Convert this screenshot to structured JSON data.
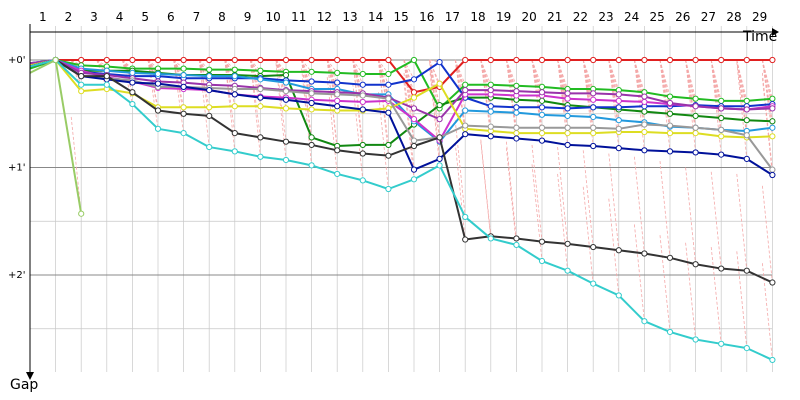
{
  "chart_data": {
    "type": "line",
    "x_axis_title": "Time",
    "y_axis_title": "Gap",
    "x_ticks": [
      "1",
      "2",
      "3",
      "4",
      "5",
      "6",
      "7",
      "8",
      "9",
      "10",
      "11",
      "12",
      "13",
      "14",
      "15",
      "16",
      "17",
      "18",
      "19",
      "20",
      "21",
      "22",
      "23",
      "24",
      "25",
      "26",
      "27",
      "28",
      "29"
    ],
    "y_ticks": [
      "+0'",
      "+1'",
      "+2'"
    ],
    "grid": true,
    "colors": {
      "lap_guides": "#f4a8a8",
      "grid": "#c8c8c8"
    },
    "series": [
      {
        "color": "#e02020",
        "values": [
          0.05,
          0,
          0,
          0,
          0,
          0,
          0,
          0,
          0,
          0,
          0,
          0,
          0,
          0,
          0,
          0.3,
          0.25,
          0,
          0,
          0,
          0,
          0,
          0,
          0,
          0,
          0,
          0,
          0,
          0,
          0
        ]
      },
      {
        "color": "#22bb22",
        "values": [
          0.08,
          0,
          0.05,
          0.06,
          0.08,
          0.08,
          0.08,
          0.09,
          0.09,
          0.1,
          0.11,
          0.11,
          0.12,
          0.13,
          0.13,
          0,
          0.45,
          0.23,
          0.23,
          0.24,
          0.25,
          0.27,
          0.27,
          0.28,
          0.3,
          0.34,
          0.36,
          0.38,
          0.38,
          0.36
        ]
      },
      {
        "color": "#118811",
        "values": [
          0.04,
          0,
          0.1,
          0.1,
          0.1,
          0.12,
          0.14,
          0.14,
          0.14,
          0.15,
          0.14,
          0.72,
          0.8,
          0.79,
          0.79,
          0.6,
          0.42,
          0.35,
          0.35,
          0.37,
          0.38,
          0.42,
          0.44,
          0.46,
          0.48,
          0.5,
          0.52,
          0.54,
          0.56,
          0.57
        ]
      },
      {
        "color": "#1133cc",
        "values": [
          0.03,
          0,
          0.11,
          0.13,
          0.15,
          0.15,
          0.17,
          0.17,
          0.17,
          0.17,
          0.19,
          0.2,
          0.21,
          0.23,
          0.23,
          0.18,
          0.02,
          0.35,
          0.43,
          0.44,
          0.44,
          0.45,
          0.44,
          0.44,
          0.43,
          0.43,
          0.42,
          0.43,
          0.43,
          0.41
        ]
      },
      {
        "color": "#2299dd",
        "values": [
          0.03,
          0,
          0.08,
          0.1,
          0.12,
          0.13,
          0.14,
          0.15,
          0.15,
          0.18,
          0.21,
          0.27,
          0.27,
          0.32,
          0.32,
          0.57,
          0.76,
          0.47,
          0.48,
          0.49,
          0.51,
          0.52,
          0.53,
          0.56,
          0.58,
          0.62,
          0.63,
          0.65,
          0.66,
          0.63
        ]
      },
      {
        "color": "#cc33cc",
        "values": [
          0.04,
          0,
          0.1,
          0.16,
          0.2,
          0.26,
          0.27,
          0.28,
          0.32,
          0.34,
          0.35,
          0.37,
          0.38,
          0.39,
          0.38,
          0.55,
          0.75,
          0.32,
          0.32,
          0.33,
          0.33,
          0.36,
          0.37,
          0.38,
          0.39,
          0.41,
          0.43,
          0.45,
          0.46,
          0.43
        ]
      },
      {
        "color": "#9933aa",
        "values": [
          0.03,
          0,
          0.12,
          0.14,
          0.17,
          0.2,
          0.21,
          0.23,
          0.24,
          0.26,
          0.28,
          0.29,
          0.3,
          0.31,
          0.35,
          0.45,
          0.55,
          0.28,
          0.28,
          0.29,
          0.3,
          0.31,
          0.31,
          0.32,
          0.34,
          0.4,
          0.43,
          0.45,
          0.46,
          0.45
        ]
      },
      {
        "color": "#dddd22",
        "values": [
          0.05,
          0,
          0.29,
          0.27,
          0.31,
          0.44,
          0.44,
          0.44,
          0.43,
          0.43,
          0.45,
          0.46,
          0.47,
          0.47,
          0.45,
          0.35,
          0.22,
          0.64,
          0.66,
          0.68,
          0.68,
          0.68,
          0.68,
          0.67,
          0.67,
          0.68,
          0.68,
          0.71,
          0.72,
          0.71
        ]
      },
      {
        "color": "#999999",
        "values": [
          0.06,
          0,
          0.15,
          0.17,
          0.19,
          0.25,
          0.25,
          0.26,
          0.27,
          0.27,
          0.29,
          0.31,
          0.32,
          0.33,
          0.36,
          0.75,
          0.72,
          0.61,
          0.62,
          0.63,
          0.63,
          0.63,
          0.63,
          0.64,
          0.6,
          0.61,
          0.63,
          0.65,
          0.7,
          1.02
        ]
      },
      {
        "color": "#00119a",
        "values": [
          0.06,
          0,
          0.15,
          0.18,
          0.21,
          0.22,
          0.25,
          0.28,
          0.32,
          0.35,
          0.37,
          0.4,
          0.43,
          0.46,
          0.49,
          1.02,
          0.92,
          0.69,
          0.71,
          0.73,
          0.75,
          0.79,
          0.8,
          0.82,
          0.84,
          0.85,
          0.86,
          0.88,
          0.92,
          1.07
        ]
      },
      {
        "color": "#333333",
        "values": [
          0.06,
          0,
          0.15,
          0.15,
          0.3,
          0.47,
          0.5,
          0.52,
          0.68,
          0.72,
          0.76,
          0.79,
          0.84,
          0.87,
          0.89,
          0.8,
          0.72,
          1.67,
          1.64,
          1.66,
          1.69,
          1.71,
          1.74,
          1.77,
          1.8,
          1.84,
          1.9,
          1.94,
          1.96,
          2.07
        ]
      },
      {
        "color": "#33cccc",
        "values": [
          0.06,
          0,
          0.23,
          0.23,
          0.41,
          0.64,
          0.68,
          0.81,
          0.85,
          0.9,
          0.93,
          0.98,
          1.06,
          1.12,
          1.2,
          1.11,
          0.98,
          1.46,
          1.66,
          1.72,
          1.87,
          1.96,
          2.08,
          2.19,
          2.43,
          2.53,
          2.6,
          2.64,
          2.68,
          2.79
        ]
      },
      {
        "color": "#99cc66",
        "values": [
          0.12,
          0,
          1.43
        ]
      }
    ]
  }
}
